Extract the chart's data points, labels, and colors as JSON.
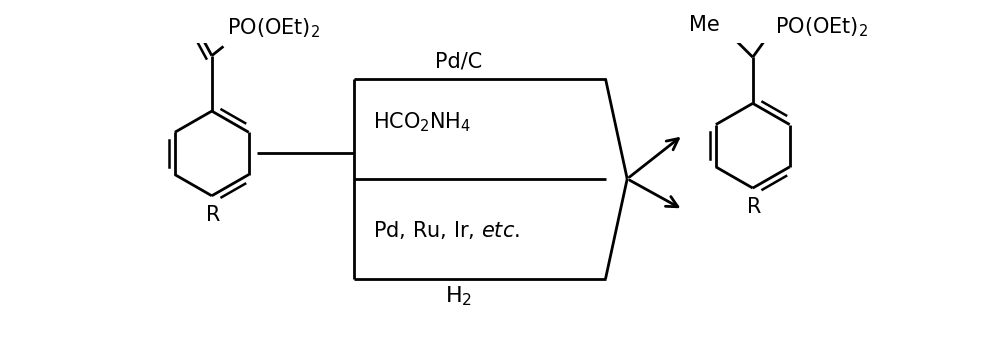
{
  "background_color": "#ffffff",
  "figure_width": 10.0,
  "figure_height": 3.61,
  "dpi": 100,
  "line_color": "#000000",
  "text_color": "#000000",
  "font_size_h2": 16,
  "font_size_text": 15,
  "font_size_pdc": 15,
  "font_size_label": 15,
  "h2_text": "H$_2$",
  "pd_text": "Pd, Ru, Ir, $\\it{etc.}$",
  "hco2nh4_text": "HCO$_2$NH$_4$",
  "pdc_text": "Pd/C",
  "me_text": "Me",
  "po_text": "PO(OEt)$_2$",
  "r_text": "R"
}
